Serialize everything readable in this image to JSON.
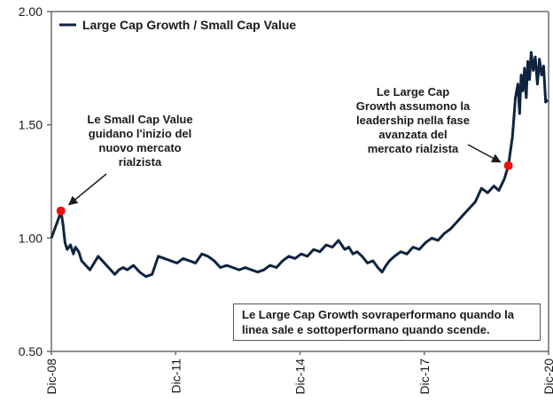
{
  "chart_data": {
    "type": "line",
    "title": "",
    "xlabel": "",
    "ylabel": "",
    "ylim": [
      0.5,
      2.0
    ],
    "yticks": [
      "0.50",
      "1.00",
      "1.50",
      "2.00"
    ],
    "ytick_values": [
      0.5,
      1.0,
      1.5,
      2.0
    ],
    "xlim": [
      2008.92,
      2020.92
    ],
    "xticks": [
      "Dic-08",
      "Dic-11",
      "Dic-14",
      "Dic-17",
      "Dic-20"
    ],
    "xtick_values": [
      2008.92,
      2011.92,
      2014.92,
      2017.92,
      2020.92
    ],
    "grid": false,
    "legend": {
      "position": "top-left",
      "entries": [
        "Large Cap Growth / Small Cap Value"
      ]
    },
    "colors": {
      "line": "#0f2340",
      "marker": "#ee1111",
      "axis": "#6b6b6b"
    },
    "series": [
      {
        "name": "Large Cap Growth / Small Cap Value",
        "x": [
          2008.92,
          2009.0,
          2009.08,
          2009.15,
          2009.2,
          2009.25,
          2009.3,
          2009.38,
          2009.45,
          2009.5,
          2009.58,
          2009.65,
          2009.75,
          2009.85,
          2009.95,
          2010.05,
          2010.15,
          2010.25,
          2010.35,
          2010.45,
          2010.55,
          2010.65,
          2010.75,
          2010.9,
          2011.05,
          2011.2,
          2011.35,
          2011.5,
          2011.65,
          2011.8,
          2011.95,
          2012.1,
          2012.25,
          2012.4,
          2012.55,
          2012.7,
          2012.85,
          2013.0,
          2013.15,
          2013.3,
          2013.45,
          2013.6,
          2013.75,
          2013.9,
          2014.05,
          2014.2,
          2014.35,
          2014.5,
          2014.65,
          2014.8,
          2014.95,
          2015.1,
          2015.25,
          2015.4,
          2015.55,
          2015.7,
          2015.85,
          2016.0,
          2016.1,
          2016.2,
          2016.3,
          2016.42,
          2016.55,
          2016.68,
          2016.8,
          2016.9,
          2017.0,
          2017.08,
          2017.2,
          2017.35,
          2017.5,
          2017.65,
          2017.8,
          2017.95,
          2018.1,
          2018.25,
          2018.4,
          2018.55,
          2018.7,
          2018.85,
          2019.0,
          2019.15,
          2019.3,
          2019.45,
          2019.6,
          2019.72,
          2019.85,
          2019.95,
          2020.05,
          2020.12,
          2020.18,
          2020.22,
          2020.26,
          2020.3,
          2020.34,
          2020.38,
          2020.42,
          2020.46,
          2020.5,
          2020.55,
          2020.6,
          2020.65,
          2020.7,
          2020.75,
          2020.8,
          2020.85,
          2020.9
        ],
        "y": [
          1.0,
          1.04,
          1.08,
          1.12,
          1.06,
          0.98,
          0.95,
          0.97,
          0.93,
          0.96,
          0.94,
          0.9,
          0.88,
          0.86,
          0.89,
          0.92,
          0.9,
          0.88,
          0.86,
          0.84,
          0.86,
          0.87,
          0.86,
          0.88,
          0.85,
          0.83,
          0.84,
          0.92,
          0.91,
          0.9,
          0.89,
          0.91,
          0.9,
          0.89,
          0.93,
          0.92,
          0.9,
          0.87,
          0.88,
          0.87,
          0.86,
          0.87,
          0.86,
          0.85,
          0.86,
          0.88,
          0.87,
          0.9,
          0.92,
          0.91,
          0.93,
          0.92,
          0.95,
          0.94,
          0.97,
          0.96,
          0.99,
          0.95,
          0.96,
          0.93,
          0.94,
          0.92,
          0.89,
          0.9,
          0.87,
          0.85,
          0.88,
          0.9,
          0.92,
          0.94,
          0.93,
          0.96,
          0.95,
          0.98,
          1.0,
          0.99,
          1.02,
          1.04,
          1.07,
          1.1,
          1.13,
          1.16,
          1.22,
          1.2,
          1.23,
          1.21,
          1.26,
          1.32,
          1.45,
          1.62,
          1.68,
          1.55,
          1.72,
          1.65,
          1.75,
          1.62,
          1.78,
          1.7,
          1.82,
          1.74,
          1.8,
          1.68,
          1.79,
          1.72,
          1.76,
          1.6,
          1.61
        ]
      }
    ],
    "markers": [
      {
        "x": 2009.15,
        "y": 1.12,
        "label": "start-peak"
      },
      {
        "x": 2019.95,
        "y": 1.32,
        "label": "leadership-change"
      }
    ],
    "annotations": [
      {
        "lines": [
          "Le Small Cap Value",
          "guidano l'inizio del",
          "nuovo mercato",
          "rialzista"
        ],
        "points_to": "start-peak"
      },
      {
        "lines": [
          "Le Large Cap",
          "Growth assumono la",
          "leadership nella fase",
          "avanzata del",
          "mercato rialzista"
        ],
        "points_to": "leadership-change"
      }
    ],
    "note": {
      "lines": [
        "Le Large Cap Growth sovraperformano quando la",
        "linea sale e sottoperformano quando scende."
      ]
    }
  }
}
